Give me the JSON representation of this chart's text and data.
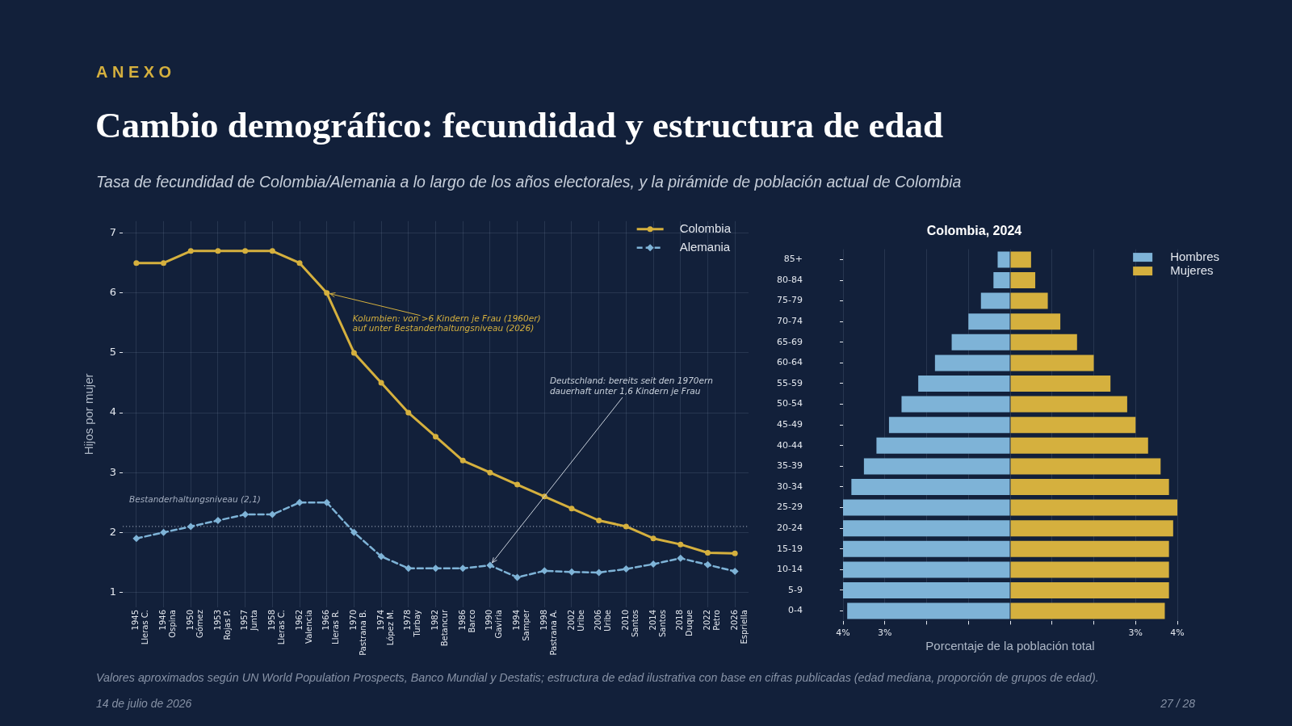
{
  "chart_data": [
    {
      "type": "line",
      "title": "Cambio demográfico: fecundidad y estructura de edad",
      "subtitle": "Tasa de fecundidad de Colombia/Alemania a lo largo de los años electorales, y la pirámide de población actual de Colombia",
      "ylabel": "Hijos por mujer",
      "categories": [
        "1945\nLleras C.",
        "1946\nOspina",
        "1950\nGómez",
        "1953\nRojas P.",
        "1957\nJunta",
        "1958\nLleras C.",
        "1962\nValencia",
        "1966\nLleras R.",
        "1970\nPastrana B.",
        "1974\nLópez M.",
        "1978\nTurbay",
        "1982\nBetancur",
        "1986\nBarco",
        "1990\nGaviria",
        "1994\nSamper",
        "1998\nPastrana A.",
        "2002\nUribe",
        "2006\nUribe",
        "2010\nSantos",
        "2014\nSantos",
        "2018\nDuque",
        "2022\nPetro",
        "2026\nEspriella"
      ],
      "series": [
        {
          "name": "Colombia",
          "color": "#d5b03e",
          "marker": "circle",
          "line_style": "solid",
          "values": [
            6.5,
            6.5,
            6.7,
            6.7,
            6.7,
            6.7,
            6.5,
            6.0,
            5.0,
            4.5,
            4.0,
            3.6,
            3.2,
            3.0,
            2.8,
            2.6,
            2.4,
            2.2,
            2.1,
            1.9,
            1.8,
            1.66,
            1.65
          ]
        },
        {
          "name": "Alemania",
          "color": "#7eb3d7",
          "marker": "diamond",
          "line_style": "dashed",
          "values": [
            1.9,
            2.0,
            2.1,
            2.2,
            2.3,
            2.3,
            2.5,
            2.5,
            2.0,
            1.6,
            1.4,
            1.4,
            1.4,
            1.45,
            1.25,
            1.36,
            1.34,
            1.33,
            1.39,
            1.47,
            1.57,
            1.46,
            1.35
          ]
        }
      ],
      "ylim": [
        0.75,
        7.2
      ],
      "yticks": [
        1,
        2,
        3,
        4,
        5,
        6,
        7
      ],
      "grid": true,
      "legend": "top right",
      "ref_lines": [
        {
          "axis": "y",
          "value": 2.1,
          "label": "Bestanderhaltungsniveau (2,1)",
          "line_style": "dotted",
          "color": "#a3adbf"
        }
      ],
      "annotations": [
        "ANEXO",
        {
          "text": "Kolumbien: von >6 Kindern je Frau (1960er)\nauf unter Bestanderhaltungsniveau (2026)",
          "x": "1966\nLleras R.",
          "y": 6.0
        },
        {
          "text": "Deutschland: bereits seit den 1970ern\ndauerhaft unter 1,6 Kindern je Frau",
          "x": "1990\nGaviria",
          "y": 1.45
        },
        "Valores aproximados según UN World Population Prospects, Banco Mundial y Destatis; estructura de edad ilustrativa con base en cifras publicadas (edad mediana, proporción de grupos de edad).",
        "14 de julio de 2026",
        "27 / 28"
      ]
    },
    {
      "type": "bar",
      "orientation": "horizontal",
      "stacked": true,
      "title": "Colombia, 2024",
      "xlabel": "Porcentaje de la población total",
      "categories": [
        "85+",
        "80-84",
        "75-79",
        "70-74",
        "65-69",
        "60-64",
        "55-59",
        "50-54",
        "45-49",
        "40-44",
        "35-39",
        "30-34",
        "25-29",
        "20-24",
        "15-19",
        "10-14",
        "5-9",
        "0-4"
      ],
      "series": [
        {
          "name": "Hombres",
          "color": "#7eb3d7",
          "values": [
            -0.3,
            -0.4,
            -0.7,
            -1.0,
            -1.4,
            -1.8,
            -2.2,
            -2.6,
            -2.9,
            -3.2,
            -3.5,
            -3.8,
            -4.0,
            -4.0,
            -4.0,
            -4.0,
            -4.0,
            -3.9
          ]
        },
        {
          "name": "Mujeres",
          "color": "#d5b03e",
          "values": [
            0.5,
            0.6,
            0.9,
            1.2,
            1.6,
            2.0,
            2.4,
            2.8,
            3.0,
            3.3,
            3.6,
            3.8,
            4.0,
            3.9,
            3.8,
            3.8,
            3.8,
            3.7
          ]
        }
      ],
      "xlim": [
        -4,
        4
      ],
      "xticks": [
        {
          "value": -4,
          "label": "4%"
        },
        {
          "value": -3,
          "label": "3%"
        },
        {
          "value": -2,
          "label": null
        },
        {
          "value": -1,
          "label": null
        },
        {
          "value": 0,
          "label": null
        },
        {
          "value": 1,
          "label": null
        },
        {
          "value": 2,
          "label": null
        },
        {
          "value": 3,
          "label": "3%"
        },
        {
          "value": 4,
          "label": "4%"
        }
      ],
      "grid": "x",
      "legend": "top right"
    }
  ]
}
